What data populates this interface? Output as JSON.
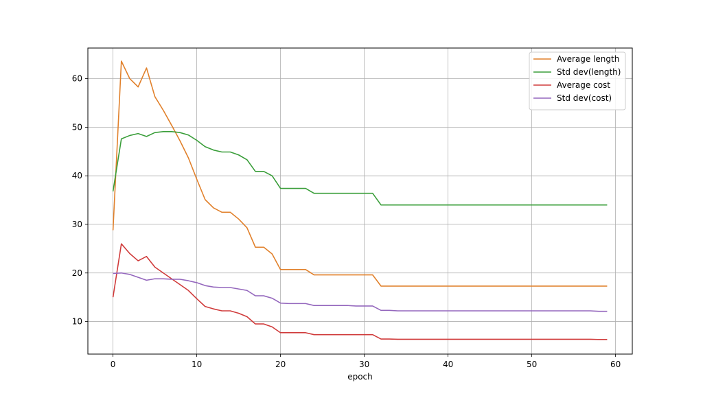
{
  "chart_data": {
    "type": "line",
    "xlabel": "epoch",
    "ylabel": "",
    "title": "",
    "xlim": [
      -3,
      62
    ],
    "ylim": [
      3.3,
      66.3
    ],
    "xticks": [
      0,
      10,
      20,
      30,
      40,
      50,
      60
    ],
    "yticks": [
      10,
      20,
      30,
      40,
      50,
      60
    ],
    "grid": true,
    "legend_position": "top-right",
    "x": [
      0,
      1,
      2,
      3,
      4,
      5,
      6,
      7,
      8,
      9,
      10,
      11,
      12,
      13,
      14,
      15,
      16,
      17,
      18,
      19,
      20,
      21,
      22,
      23,
      24,
      25,
      26,
      27,
      28,
      29,
      30,
      31,
      32,
      33,
      34,
      35,
      36,
      37,
      38,
      39,
      40,
      41,
      42,
      43,
      44,
      45,
      46,
      47,
      48,
      49,
      50,
      51,
      52,
      53,
      54,
      55,
      56,
      57,
      58,
      59
    ],
    "series": [
      {
        "name": "Average length",
        "color": "#e1812c",
        "values": [
          28.8,
          63.6,
          60.0,
          58.3,
          62.2,
          56.3,
          53.5,
          50.4,
          47.2,
          43.7,
          39.3,
          35.1,
          33.4,
          32.5,
          32.5,
          31.1,
          29.3,
          25.3,
          25.3,
          23.9,
          20.7,
          20.7,
          20.7,
          20.7,
          19.6,
          19.6,
          19.6,
          19.6,
          19.6,
          19.6,
          19.6,
          19.6,
          17.3,
          17.3,
          17.3,
          17.3,
          17.3,
          17.3,
          17.3,
          17.3,
          17.3,
          17.3,
          17.3,
          17.3,
          17.3,
          17.3,
          17.3,
          17.3,
          17.3,
          17.3,
          17.3,
          17.3,
          17.3,
          17.3,
          17.3,
          17.3,
          17.3,
          17.3,
          17.3,
          17.3
        ]
      },
      {
        "name": "Std dev(length)",
        "color": "#3a9e3a",
        "values": [
          36.8,
          47.6,
          48.3,
          48.7,
          48.1,
          48.9,
          49.1,
          49.1,
          48.9,
          48.4,
          47.3,
          46.0,
          45.3,
          44.9,
          44.9,
          44.3,
          43.3,
          40.9,
          40.9,
          40.0,
          37.4,
          37.4,
          37.4,
          37.4,
          36.4,
          36.4,
          36.4,
          36.4,
          36.4,
          36.4,
          36.4,
          36.4,
          34.0,
          34.0,
          34.0,
          34.0,
          34.0,
          34.0,
          34.0,
          34.0,
          34.0,
          34.0,
          34.0,
          34.0,
          34.0,
          34.0,
          34.0,
          34.0,
          34.0,
          34.0,
          34.0,
          34.0,
          34.0,
          34.0,
          34.0,
          34.0,
          34.0,
          34.0,
          34.0,
          34.0
        ]
      },
      {
        "name": "Average cost",
        "color": "#d03b3b",
        "values": [
          15.0,
          26.0,
          24.0,
          22.5,
          23.4,
          21.2,
          20.0,
          18.8,
          17.6,
          16.4,
          14.7,
          13.1,
          12.6,
          12.2,
          12.2,
          11.7,
          11.0,
          9.5,
          9.5,
          8.9,
          7.7,
          7.7,
          7.7,
          7.7,
          7.3,
          7.3,
          7.3,
          7.3,
          7.3,
          7.3,
          7.3,
          7.3,
          6.4,
          6.4,
          6.35,
          6.35,
          6.35,
          6.35,
          6.35,
          6.35,
          6.35,
          6.35,
          6.35,
          6.35,
          6.35,
          6.35,
          6.35,
          6.35,
          6.35,
          6.35,
          6.35,
          6.35,
          6.35,
          6.35,
          6.35,
          6.35,
          6.35,
          6.35,
          6.3,
          6.3
        ]
      },
      {
        "name": "Std dev(cost)",
        "color": "#9467bd",
        "values": [
          19.9,
          20.0,
          19.7,
          19.1,
          18.5,
          18.8,
          18.8,
          18.7,
          18.7,
          18.4,
          18.0,
          17.4,
          17.1,
          17.0,
          17.0,
          16.7,
          16.4,
          15.3,
          15.3,
          14.8,
          13.8,
          13.7,
          13.7,
          13.7,
          13.3,
          13.3,
          13.3,
          13.3,
          13.3,
          13.2,
          13.2,
          13.2,
          12.3,
          12.3,
          12.2,
          12.2,
          12.2,
          12.2,
          12.2,
          12.2,
          12.2,
          12.2,
          12.2,
          12.2,
          12.2,
          12.2,
          12.2,
          12.2,
          12.2,
          12.2,
          12.2,
          12.2,
          12.2,
          12.2,
          12.2,
          12.2,
          12.2,
          12.2,
          12.1,
          12.1
        ]
      }
    ]
  }
}
